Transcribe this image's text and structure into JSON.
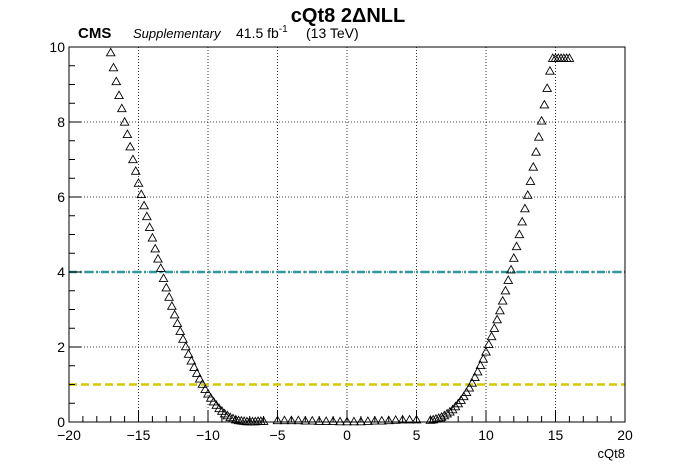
{
  "chart_data": {
    "type": "scatter",
    "title": "cQt8 2ΔNLL",
    "xlabel": "cQt8",
    "ylabel": "",
    "xlim": [
      -20,
      20
    ],
    "ylim": [
      0,
      10
    ],
    "xticks": [
      -20,
      -15,
      -10,
      -5,
      0,
      5,
      10,
      15,
      20
    ],
    "yticks": [
      0,
      2,
      4,
      6,
      8,
      10
    ],
    "grid": true,
    "marker": "open-triangle",
    "experiment_label": "CMS",
    "supplementary_label": "Supplementary",
    "lumi_value": "41.5 fb",
    "lumi_exponent": "-1",
    "energy_label": "(13 TeV)",
    "reference_lines": [
      {
        "y": 4,
        "color": "#2a9a9a",
        "style": "dash-dot"
      },
      {
        "y": 1,
        "color": "#d4c800",
        "style": "dashed"
      }
    ],
    "series": [
      {
        "color": "#000000",
        "x": [
          -17.0,
          -16.8,
          -16.6,
          -16.4,
          -16.2,
          -16.0,
          -15.8,
          -15.6,
          -15.4,
          -15.2,
          -15.0,
          -14.8,
          -14.6,
          -14.4,
          -14.2,
          -14.0,
          -13.8,
          -13.6,
          -13.4,
          -13.2,
          -13.0,
          -12.8,
          -12.6,
          -12.4,
          -12.2,
          -12.0,
          -11.8,
          -11.6,
          -11.4,
          -11.2,
          -11.0,
          -10.8,
          -10.6,
          -10.4,
          -10.2,
          -10.0,
          -9.8,
          -9.6,
          -9.4,
          -9.2,
          -9.0,
          -8.8,
          -8.6,
          -8.4,
          -8.2,
          -8.0,
          -7.8,
          -7.6,
          -7.4,
          -7.2,
          -7.0,
          -6.8,
          -6.6,
          -6.4,
          -6.2,
          -6.0,
          -5.0,
          -4.5,
          -4.0,
          -3.5,
          -3.0,
          -2.5,
          -2.0,
          -1.5,
          -1.0,
          -0.5,
          0.0,
          0.5,
          1.0,
          1.5,
          2.0,
          2.5,
          3.0,
          3.5,
          4.0,
          4.5,
          5.0,
          6.0,
          6.2,
          6.4,
          6.6,
          6.8,
          7.0,
          7.2,
          7.4,
          7.6,
          7.8,
          8.0,
          8.2,
          8.4,
          8.6,
          8.8,
          9.0,
          9.2,
          9.4,
          9.6,
          9.8,
          10.0,
          10.2,
          10.4,
          10.6,
          10.8,
          11.0,
          11.2,
          11.4,
          11.6,
          11.8,
          12.0,
          12.2,
          12.4,
          12.6,
          12.8,
          13.0,
          13.2,
          13.4,
          13.6,
          13.8,
          14.0,
          14.2,
          14.4,
          14.6,
          14.8,
          15.0,
          15.2,
          15.4,
          15.6,
          15.8,
          16.0
        ],
        "y": [
          9.85,
          9.45,
          9.08,
          8.71,
          8.36,
          8.0,
          7.67,
          7.34,
          7.0,
          6.69,
          6.37,
          6.07,
          5.77,
          5.48,
          5.19,
          4.91,
          4.62,
          4.35,
          4.1,
          3.83,
          3.58,
          3.33,
          3.09,
          2.86,
          2.63,
          2.42,
          2.21,
          2.01,
          1.81,
          1.63,
          1.46,
          1.3,
          1.15,
          1.01,
          0.87,
          0.75,
          0.64,
          0.54,
          0.45,
          0.36,
          0.29,
          0.22,
          0.17,
          0.12,
          0.09,
          0.06,
          0.04,
          0.03,
          0.02,
          0.01,
          0.01,
          0.01,
          0.01,
          0.02,
          0.02,
          0.02,
          0.04,
          0.04,
          0.04,
          0.04,
          0.03,
          0.03,
          0.02,
          0.02,
          0.02,
          0.01,
          0.01,
          0.01,
          0.01,
          0.02,
          0.03,
          0.03,
          0.04,
          0.05,
          0.06,
          0.06,
          0.06,
          0.05,
          0.06,
          0.08,
          0.1,
          0.13,
          0.17,
          0.22,
          0.27,
          0.33,
          0.41,
          0.49,
          0.58,
          0.68,
          0.79,
          0.91,
          1.04,
          1.19,
          1.34,
          1.51,
          1.68,
          1.87,
          2.07,
          2.28,
          2.5,
          2.73,
          2.97,
          3.23,
          3.5,
          3.78,
          4.06,
          4.37,
          4.68,
          5.0,
          5.34,
          5.69,
          6.05,
          6.42,
          6.8,
          7.2,
          7.6,
          8.03,
          8.46,
          8.9,
          9.36,
          9.7,
          9.7,
          9.7,
          9.7,
          9.7,
          9.7,
          9.7
        ]
      }
    ]
  }
}
